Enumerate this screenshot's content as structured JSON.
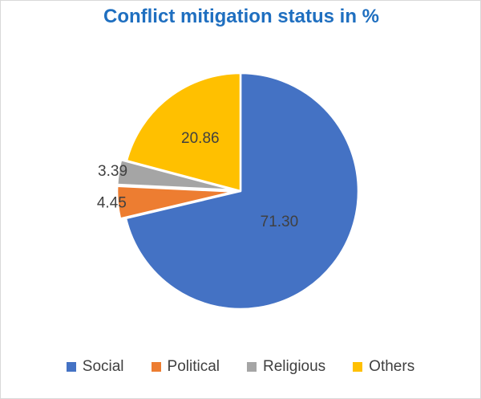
{
  "chart_data": {
    "type": "pie",
    "title": "Conflict mitigation status in %",
    "categories": [
      "Social",
      "Political",
      "Religious",
      "Others"
    ],
    "values": [
      71.3,
      4.45,
      3.39,
      20.86
    ],
    "labels": [
      "71.30",
      "4.45",
      "3.39",
      "20.86"
    ],
    "colors": [
      "#4472c4",
      "#ed7d31",
      "#a5a5a5",
      "#ffc000"
    ],
    "exploded": [
      false,
      true,
      true,
      false
    ],
    "legend_position": "bottom",
    "start_angle": "12 o'clock, clockwise"
  }
}
